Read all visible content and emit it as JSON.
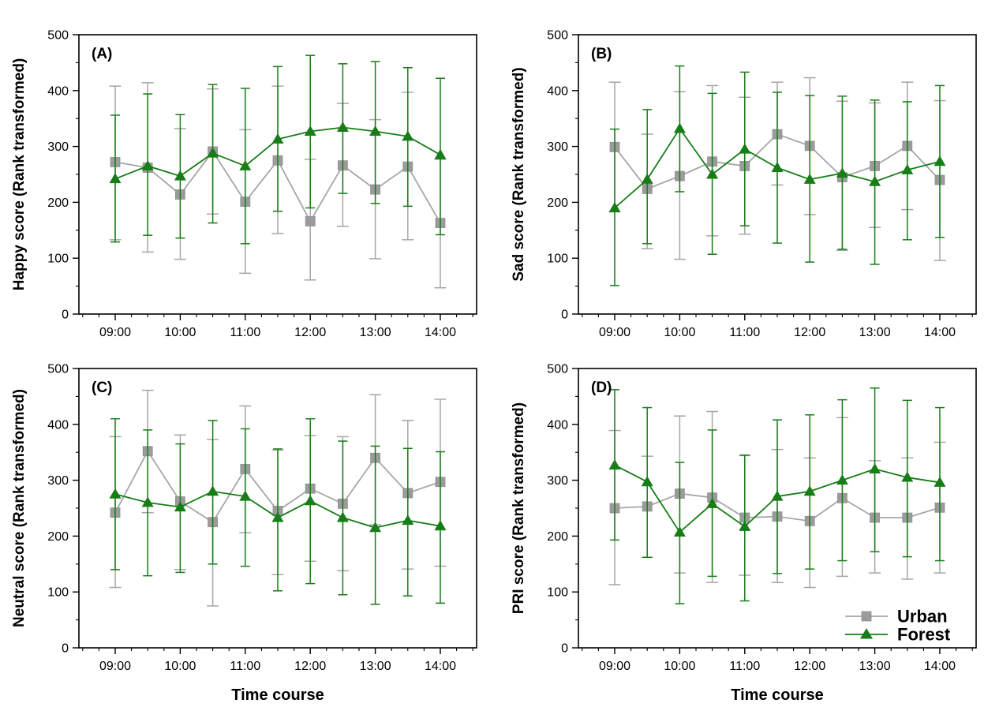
{
  "figure": {
    "background": "#ffffff",
    "colors": {
      "urban_marker": "#9b9b9b",
      "urban_line": "#a6a6a6",
      "forest": "#177d17",
      "axis": "#000000"
    },
    "y_axis": {
      "min": 0,
      "max": 500,
      "major_tick_labels": [
        "0",
        "100",
        "200",
        "300",
        "400",
        "500"
      ],
      "minor_step": 50
    },
    "x_axis": {
      "title": "Time course",
      "hour_tick_labels": [
        "09:00",
        "10:00",
        "11:00",
        "12:00",
        "13:00",
        "14:00"
      ],
      "minor_step_minutes": 15
    },
    "legend": {
      "items": [
        {
          "label": "Urban",
          "marker": "square"
        },
        {
          "label": "Forest",
          "marker": "triangle"
        }
      ]
    }
  },
  "chart_data": [
    {
      "type": "line",
      "panel_label": "(A)",
      "ylabel": "Happy score (Rank transformed)",
      "xlabel": "",
      "show_xlabel": false,
      "show_legend": false,
      "ylim": [
        0,
        500
      ],
      "x": [
        "09:00",
        "09:30",
        "10:00",
        "10:30",
        "11:00",
        "11:30",
        "12:00",
        "12:30",
        "13:00",
        "13:30",
        "14:00"
      ],
      "series": [
        {
          "name": "Urban",
          "marker": "square",
          "values": [
            272,
            262,
            214,
            291,
            201,
            275,
            166,
            266,
            223,
            264,
            163
          ],
          "err_low": [
            133,
            111,
            98,
            179,
            73,
            144,
            61,
            157,
            99,
            133,
            47
          ],
          "err_high": [
            408,
            414,
            332,
            403,
            330,
            408,
            277,
            377,
            348,
            397,
            277
          ]
        },
        {
          "name": "Forest",
          "marker": "triangle",
          "values": [
            242,
            265,
            247,
            288,
            265,
            313,
            327,
            334,
            327,
            318,
            285
          ],
          "err_low": [
            129,
            141,
            136,
            163,
            126,
            184,
            190,
            216,
            198,
            193,
            142
          ],
          "err_high": [
            356,
            394,
            357,
            411,
            404,
            443,
            463,
            448,
            452,
            441,
            422
          ]
        }
      ]
    },
    {
      "type": "line",
      "panel_label": "(B)",
      "ylabel": "Sad score (Rank transformed)",
      "xlabel": "",
      "show_xlabel": false,
      "show_legend": false,
      "ylim": [
        0,
        500
      ],
      "x": [
        "09:00",
        "09:30",
        "10:00",
        "10:30",
        "11:00",
        "11:30",
        "12:00",
        "12:30",
        "13:00",
        "13:30",
        "14:00"
      ],
      "series": [
        {
          "name": "Urban",
          "marker": "square",
          "values": [
            299,
            224,
            247,
            273,
            265,
            322,
            301,
            245,
            265,
            301,
            240
          ],
          "err_low": [
            183,
            117,
            98,
            140,
            143,
            231,
            178,
            114,
            155,
            187,
            96
          ],
          "err_high": [
            415,
            322,
            398,
            409,
            388,
            415,
            423,
            381,
            378,
            415,
            382
          ]
        },
        {
          "name": "Forest",
          "marker": "triangle",
          "values": [
            190,
            241,
            332,
            250,
            295,
            262,
            241,
            252,
            237,
            258,
            273
          ],
          "err_low": [
            51,
            126,
            219,
            107,
            158,
            127,
            93,
            116,
            89,
            133,
            137
          ],
          "err_high": [
            331,
            366,
            444,
            395,
            433,
            397,
            391,
            390,
            383,
            380,
            409
          ]
        }
      ]
    },
    {
      "type": "line",
      "panel_label": "(C)",
      "ylabel": "Neutral score (Rank transformed)",
      "xlabel": "Time course",
      "show_xlabel": true,
      "show_legend": false,
      "ylim": [
        0,
        500
      ],
      "x": [
        "09:00",
        "09:30",
        "10:00",
        "10:30",
        "11:00",
        "11:30",
        "12:00",
        "12:30",
        "13:00",
        "13:30",
        "14:00"
      ],
      "series": [
        {
          "name": "Urban",
          "marker": "square",
          "values": [
            242,
            352,
            262,
            225,
            320,
            245,
            285,
            258,
            340,
            277,
            297
          ],
          "err_low": [
            108,
            242,
            140,
            75,
            206,
            131,
            155,
            138,
            220,
            141,
            146
          ],
          "err_high": [
            378,
            461,
            381,
            373,
            433,
            354,
            380,
            378,
            453,
            407,
            445
          ]
        },
        {
          "name": "Forest",
          "marker": "triangle",
          "values": [
            275,
            260,
            252,
            280,
            271,
            233,
            263,
            233,
            215,
            228,
            218
          ],
          "err_low": [
            140,
            129,
            135,
            150,
            146,
            102,
            115,
            95,
            78,
            93,
            80
          ],
          "err_high": [
            410,
            390,
            365,
            407,
            392,
            356,
            410,
            370,
            361,
            357,
            351
          ]
        }
      ]
    },
    {
      "type": "line",
      "panel_label": "(D)",
      "ylabel": "PRI score (Rank transformed)",
      "xlabel": "Time course",
      "show_xlabel": true,
      "show_legend": true,
      "ylim": [
        0,
        500
      ],
      "x": [
        "09:00",
        "09:30",
        "10:00",
        "10:30",
        "11:00",
        "11:30",
        "12:00",
        "12:30",
        "13:00",
        "13:30",
        "14:00"
      ],
      "series": [
        {
          "name": "Urban",
          "marker": "square",
          "values": [
            250,
            253,
            276,
            269,
            233,
            235,
            227,
            268,
            233,
            233,
            251
          ],
          "err_low": [
            113,
            162,
            134,
            117,
            130,
            117,
            108,
            128,
            134,
            123,
            134
          ],
          "err_high": [
            389,
            343,
            415,
            423,
            344,
            355,
            340,
            412,
            335,
            340,
            368
          ]
        },
        {
          "name": "Forest",
          "marker": "triangle",
          "values": [
            327,
            297,
            207,
            258,
            217,
            271,
            280,
            300,
            320,
            305,
            296
          ],
          "err_low": [
            193,
            162,
            79,
            128,
            84,
            133,
            141,
            156,
            172,
            163,
            156
          ],
          "err_high": [
            462,
            430,
            332,
            390,
            345,
            408,
            417,
            444,
            465,
            443,
            430
          ]
        }
      ]
    }
  ]
}
